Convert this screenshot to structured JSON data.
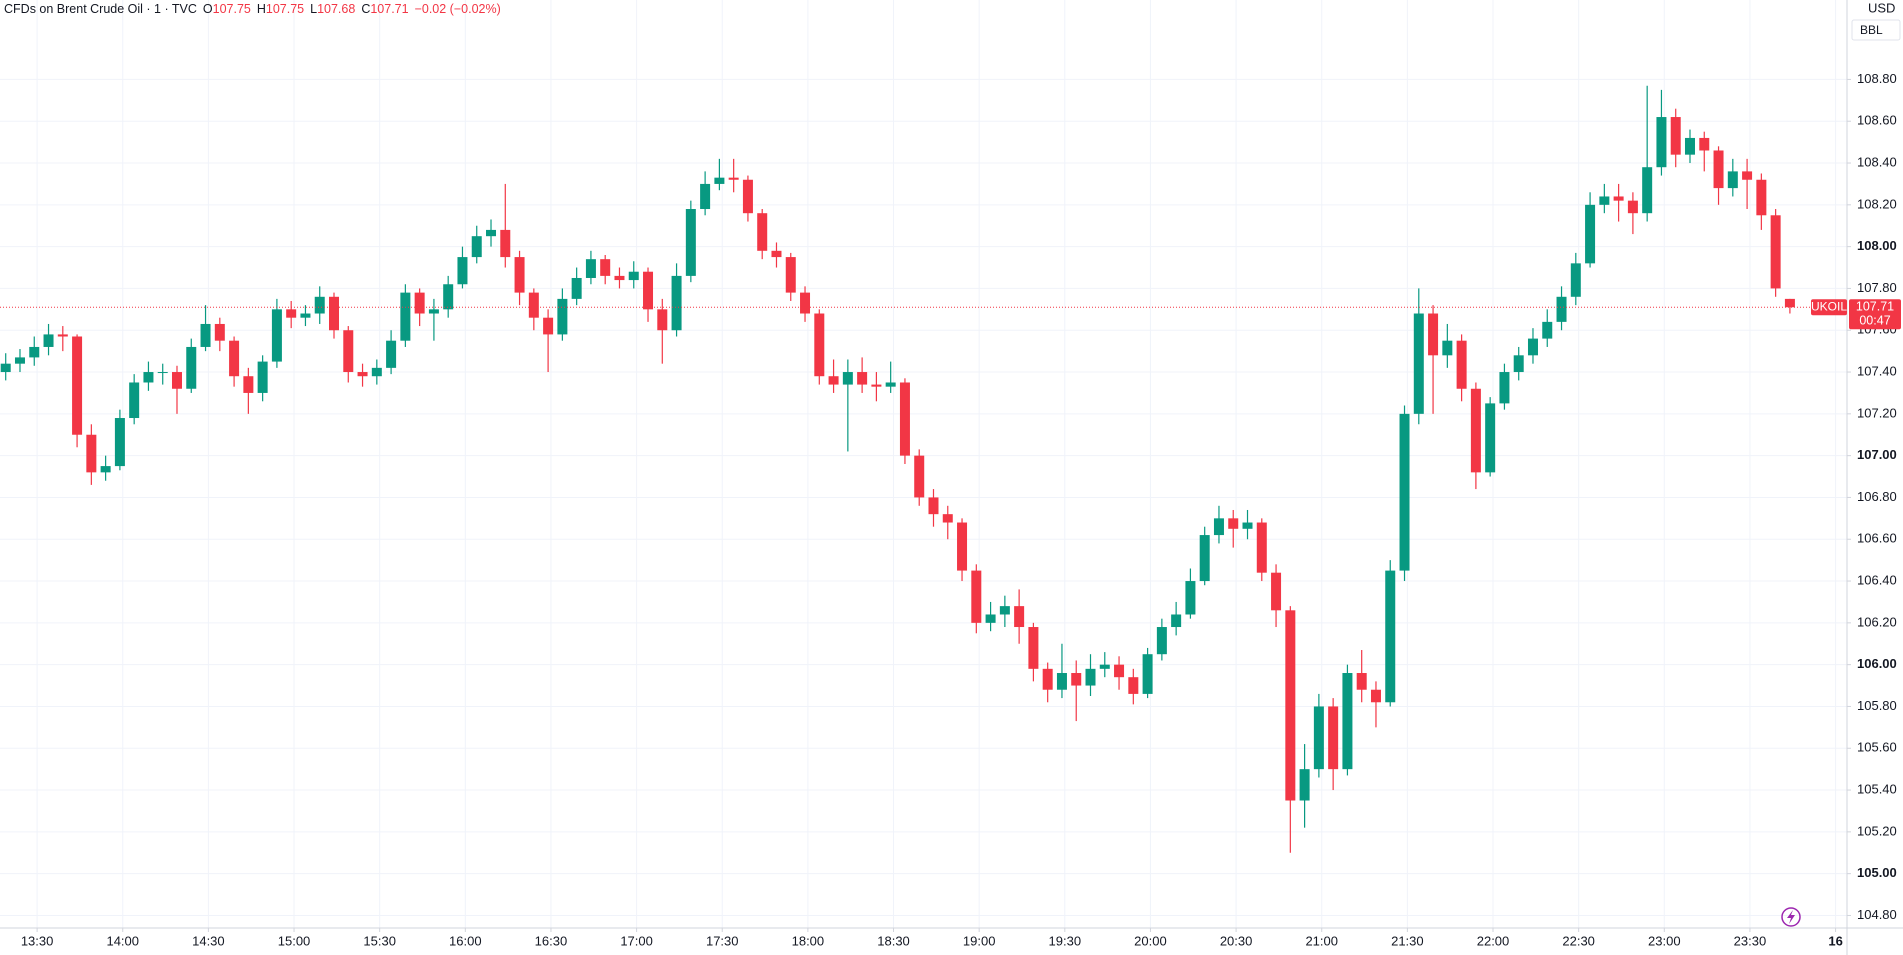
{
  "chart_data": {
    "type": "candlestick",
    "symbol_line": "CFDs on Brent Crude Oil · 1 · TVC",
    "ohlc_labels": [
      "O",
      "H",
      "L",
      "C"
    ],
    "change": "−0.02 (−0.02%)",
    "currency": "USD",
    "unit": "BBL",
    "ticker": "UKOIL",
    "countdown": "00:47",
    "up_color": "#089981",
    "down_color": "#f23645",
    "grid": true,
    "x": [
      "13:19",
      "13:24",
      "13:29",
      "13:34",
      "13:39",
      "13:44",
      "13:49",
      "13:54",
      "13:59",
      "14:04",
      "14:09",
      "14:14",
      "14:19",
      "14:24",
      "14:29",
      "14:34",
      "14:39",
      "14:44",
      "14:49",
      "14:54",
      "14:59",
      "15:04",
      "15:09",
      "15:14",
      "15:19",
      "15:24",
      "15:29",
      "15:34",
      "15:39",
      "15:44",
      "15:49",
      "15:54",
      "15:59",
      "16:04",
      "16:09",
      "16:14",
      "16:19",
      "16:24",
      "16:29",
      "16:34",
      "16:39",
      "16:44",
      "16:49",
      "16:54",
      "16:59",
      "17:04",
      "17:09",
      "17:14",
      "17:19",
      "17:24",
      "17:29",
      "17:34",
      "17:39",
      "17:44",
      "17:49",
      "17:54",
      "17:59",
      "18:04",
      "18:09",
      "18:14",
      "18:19",
      "18:24",
      "18:29",
      "18:34",
      "18:39",
      "18:44",
      "18:49",
      "18:54",
      "18:59",
      "19:04",
      "19:09",
      "19:14",
      "19:19",
      "19:24",
      "19:29",
      "19:34",
      "19:39",
      "19:44",
      "19:49",
      "19:54",
      "19:59",
      "20:04",
      "20:09",
      "20:14",
      "20:19",
      "20:24",
      "20:29",
      "20:34",
      "20:39",
      "20:44",
      "20:49",
      "20:54",
      "20:59",
      "21:04",
      "21:09",
      "21:14",
      "21:19",
      "21:24",
      "21:29",
      "21:34",
      "21:39",
      "21:44",
      "21:49",
      "21:54",
      "21:59",
      "22:04",
      "22:09",
      "22:14",
      "22:19",
      "22:24",
      "22:29",
      "22:34",
      "22:39",
      "22:44",
      "22:49",
      "22:54",
      "22:59",
      "23:04",
      "23:09",
      "23:14",
      "23:19",
      "23:24",
      "23:29",
      "23:34",
      "23:39",
      "23:44"
    ],
    "open": [
      107.4,
      107.44,
      107.47,
      107.52,
      107.58,
      107.57,
      107.1,
      106.92,
      106.95,
      107.18,
      107.35,
      107.4,
      107.4,
      107.32,
      107.52,
      107.63,
      107.55,
      107.38,
      107.3,
      107.45,
      107.7,
      107.66,
      107.68,
      107.76,
      107.6,
      107.4,
      107.38,
      107.42,
      107.55,
      107.78,
      107.68,
      107.7,
      107.82,
      107.95,
      108.05,
      108.08,
      107.95,
      107.78,
      107.66,
      107.58,
      107.75,
      107.85,
      107.94,
      107.86,
      107.84,
      107.88,
      107.7,
      107.6,
      107.86,
      108.18,
      108.3,
      108.33,
      108.32,
      108.16,
      107.98,
      107.95,
      107.78,
      107.68,
      107.38,
      107.34,
      107.4,
      107.34,
      107.33,
      107.35,
      107.0,
      106.8,
      106.72,
      106.68,
      106.45,
      106.2,
      106.24,
      106.28,
      106.18,
      105.98,
      105.88,
      105.96,
      105.9,
      105.98,
      106.0,
      105.94,
      105.86,
      106.05,
      106.18,
      106.24,
      106.4,
      106.62,
      106.7,
      106.65,
      106.68,
      106.44,
      106.26,
      105.35,
      105.5,
      105.8,
      105.5,
      105.96,
      105.88,
      105.82,
      106.45,
      107.2,
      107.68,
      107.48,
      107.55,
      107.32,
      106.92,
      107.25,
      107.4,
      107.48,
      107.56,
      107.64,
      107.76,
      107.92,
      108.2,
      108.24,
      108.22,
      108.16,
      108.38,
      108.62,
      108.44,
      108.52,
      108.46,
      108.28,
      108.36,
      108.32,
      108.15,
      107.75
    ],
    "high": [
      107.49,
      107.51,
      107.57,
      107.63,
      107.62,
      107.58,
      107.15,
      107.0,
      107.22,
      107.39,
      107.45,
      107.44,
      107.43,
      107.56,
      107.72,
      107.66,
      107.57,
      107.42,
      107.48,
      107.75,
      107.74,
      107.72,
      107.81,
      107.78,
      107.62,
      107.44,
      107.46,
      107.6,
      107.82,
      107.8,
      107.75,
      107.86,
      108.0,
      108.1,
      108.13,
      108.3,
      107.98,
      107.8,
      107.7,
      107.8,
      107.9,
      107.98,
      107.96,
      107.9,
      107.93,
      107.9,
      107.75,
      107.92,
      108.22,
      108.36,
      108.42,
      108.42,
      108.34,
      108.18,
      108.02,
      107.97,
      107.81,
      107.7,
      107.46,
      107.46,
      107.47,
      107.4,
      107.45,
      107.37,
      107.03,
      106.84,
      106.76,
      106.7,
      106.48,
      106.3,
      106.33,
      106.36,
      106.2,
      106.01,
      106.1,
      106.02,
      106.05,
      106.06,
      106.04,
      105.98,
      106.08,
      106.22,
      106.3,
      106.46,
      106.66,
      106.76,
      106.74,
      106.74,
      106.7,
      106.48,
      106.28,
      105.62,
      105.86,
      105.84,
      106.0,
      106.07,
      105.92,
      106.5,
      107.24,
      107.8,
      107.72,
      107.63,
      107.58,
      107.35,
      107.28,
      107.44,
      107.52,
      107.61,
      107.7,
      107.81,
      107.97,
      108.26,
      108.3,
      108.3,
      108.26,
      108.77,
      108.75,
      108.66,
      108.56,
      108.55,
      108.48,
      108.42,
      108.42,
      108.35,
      108.18,
      107.75
    ],
    "low": [
      107.36,
      107.4,
      107.43,
      107.48,
      107.5,
      107.04,
      106.86,
      106.88,
      106.93,
      107.15,
      107.31,
      107.34,
      107.2,
      107.3,
      107.5,
      107.5,
      107.33,
      107.2,
      107.26,
      107.42,
      107.61,
      107.62,
      107.63,
      107.56,
      107.35,
      107.33,
      107.34,
      107.39,
      107.52,
      107.62,
      107.55,
      107.66,
      107.8,
      107.92,
      108.0,
      107.9,
      107.72,
      107.6,
      107.4,
      107.55,
      107.72,
      107.82,
      107.82,
      107.8,
      107.8,
      107.64,
      107.44,
      107.57,
      107.83,
      108.15,
      108.27,
      108.26,
      108.12,
      107.94,
      107.9,
      107.74,
      107.64,
      107.34,
      107.3,
      107.02,
      107.3,
      107.26,
      107.3,
      106.96,
      106.76,
      106.66,
      106.6,
      106.4,
      106.15,
      106.16,
      106.18,
      106.1,
      105.92,
      105.82,
      105.84,
      105.73,
      105.85,
      105.94,
      105.88,
      105.81,
      105.84,
      106.02,
      106.14,
      106.22,
      106.38,
      106.58,
      106.56,
      106.6,
      106.4,
      106.18,
      105.1,
      105.22,
      105.46,
      105.4,
      105.47,
      105.82,
      105.7,
      105.8,
      106.4,
      107.15,
      107.2,
      107.42,
      107.26,
      106.84,
      106.9,
      107.22,
      107.36,
      107.44,
      107.52,
      107.6,
      107.72,
      107.9,
      108.16,
      108.12,
      108.06,
      108.12,
      108.34,
      108.38,
      108.4,
      108.36,
      108.2,
      108.24,
      108.18,
      108.08,
      107.76,
      107.68
    ],
    "close": [
      107.44,
      107.47,
      107.52,
      107.58,
      107.57,
      107.1,
      106.92,
      106.95,
      107.18,
      107.35,
      107.4,
      107.4,
      107.32,
      107.52,
      107.63,
      107.55,
      107.38,
      107.3,
      107.45,
      107.7,
      107.66,
      107.68,
      107.76,
      107.6,
      107.4,
      107.38,
      107.42,
      107.55,
      107.78,
      107.68,
      107.7,
      107.82,
      107.95,
      108.05,
      108.08,
      107.95,
      107.78,
      107.66,
      107.58,
      107.75,
      107.85,
      107.94,
      107.86,
      107.84,
      107.88,
      107.7,
      107.6,
      107.86,
      108.18,
      108.3,
      108.33,
      108.32,
      108.16,
      107.98,
      107.95,
      107.78,
      107.68,
      107.38,
      107.34,
      107.4,
      107.34,
      107.33,
      107.35,
      107.0,
      106.8,
      106.72,
      106.68,
      106.45,
      106.2,
      106.24,
      106.28,
      106.18,
      105.98,
      105.88,
      105.96,
      105.9,
      105.98,
      106.0,
      105.94,
      105.86,
      106.05,
      106.18,
      106.24,
      106.4,
      106.62,
      106.7,
      106.65,
      106.68,
      106.44,
      106.26,
      105.35,
      105.5,
      105.8,
      105.5,
      105.96,
      105.88,
      105.82,
      106.45,
      107.2,
      107.68,
      107.48,
      107.55,
      107.32,
      106.92,
      107.25,
      107.4,
      107.48,
      107.56,
      107.64,
      107.76,
      107.92,
      108.2,
      108.24,
      108.22,
      108.16,
      108.38,
      108.62,
      108.44,
      108.52,
      108.46,
      108.28,
      108.36,
      108.32,
      108.15,
      107.8,
      107.71
    ],
    "xlim": [
      "13:17",
      "24:04"
    ],
    "xticks": [
      "13:30",
      "14:00",
      "14:30",
      "15:00",
      "15:30",
      "16:00",
      "16:30",
      "17:00",
      "17:30",
      "18:00",
      "18:30",
      "19:00",
      "19:30",
      "20:00",
      "20:30",
      "21:00",
      "21:30",
      "22:00",
      "22:30",
      "23:00",
      "23:30",
      {
        "value": "24:00",
        "label": "16"
      }
    ],
    "ylim": [
      104.74,
      109.18
    ],
    "yticks": [
      {
        "value": 104.8,
        "label": "104.80"
      },
      {
        "value": 105,
        "label": "105.00"
      },
      {
        "value": 105.2,
        "label": "105.20"
      },
      {
        "value": 105.4,
        "label": "105.40"
      },
      {
        "value": 105.6,
        "label": "105.60"
      },
      {
        "value": 105.8,
        "label": "105.80"
      },
      {
        "value": 106,
        "label": "106.00"
      },
      {
        "value": 106.2,
        "label": "106.20"
      },
      {
        "value": 106.4,
        "label": "106.40"
      },
      {
        "value": 106.6,
        "label": "106.60"
      },
      {
        "value": 106.8,
        "label": "106.80"
      },
      {
        "value": 107,
        "label": "107.00"
      },
      {
        "value": 107.2,
        "label": "107.20"
      },
      {
        "value": 107.4,
        "label": "107.40"
      },
      {
        "value": 107.6,
        "label": "107.60"
      },
      {
        "value": 107.8,
        "label": "107.80"
      },
      {
        "value": 108,
        "label": "108.00"
      },
      {
        "value": 108.2,
        "label": "108.20"
      },
      {
        "value": 108.4,
        "label": "108.40"
      },
      {
        "value": 108.6,
        "label": "108.60"
      },
      {
        "value": 108.8,
        "label": "108.80"
      }
    ]
  }
}
